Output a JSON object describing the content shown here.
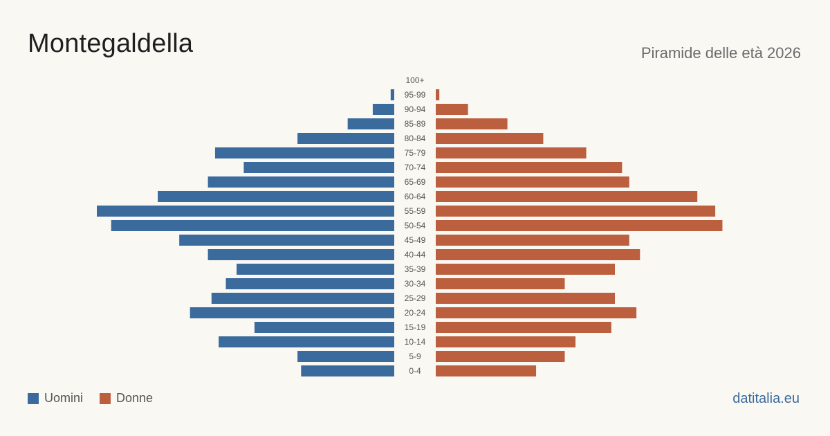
{
  "header": {
    "title": "Montegaldella",
    "subtitle": "Piramide delle età 2026"
  },
  "legend": {
    "men_label": "Uomini",
    "women_label": "Donne"
  },
  "source": "datitalia.eu",
  "colors": {
    "men": "#3b6a9c",
    "women": "#bc5f3f",
    "background": "#faf8f3",
    "label": "#555555"
  },
  "chart_data": {
    "type": "bar",
    "orientation": "horizontal-pyramid",
    "categories": [
      "100+",
      "95-99",
      "90-94",
      "85-89",
      "80-84",
      "75-79",
      "70-74",
      "65-69",
      "60-64",
      "55-59",
      "50-54",
      "45-49",
      "40-44",
      "35-39",
      "30-34",
      "25-29",
      "20-24",
      "15-19",
      "10-14",
      "5-9",
      "0-4"
    ],
    "series": [
      {
        "name": "Uomini",
        "values": [
          0,
          1,
          6,
          13,
          27,
          50,
          42,
          52,
          66,
          83,
          79,
          60,
          52,
          44,
          47,
          51,
          57,
          39,
          49,
          27,
          26
        ]
      },
      {
        "name": "Donne",
        "values": [
          0,
          1,
          9,
          20,
          30,
          42,
          52,
          54,
          73,
          78,
          80,
          54,
          57,
          50,
          36,
          50,
          56,
          49,
          39,
          36,
          28
        ]
      }
    ],
    "xlim": [
      0,
      83
    ],
    "grid": false,
    "legend_position": "bottom-left"
  }
}
